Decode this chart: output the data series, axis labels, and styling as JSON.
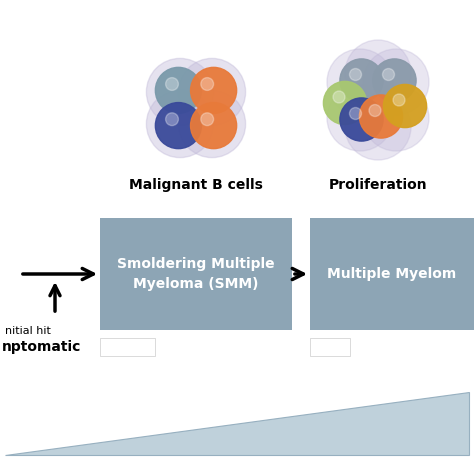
{
  "bg_color": "#ffffff",
  "box_color": "#8da5b5",
  "fig_w": 4.74,
  "fig_h": 4.74,
  "box1_label": "Smoldering Multiple\nMyeloma (SMM)",
  "box2_label": "Multiple Myelom",
  "label_color": "#ffffff",
  "label_fontsize": 10,
  "label_fontweight": "bold",
  "malignant_label": "Malignant B cells",
  "proliferation_label": "Proliferation",
  "cluster_label_fontsize": 10,
  "cluster_label_fontweight": "bold",
  "asymptomatic_label": "nptomatic",
  "initial_hit_label": "nitial hit",
  "triangle_color": "#b8ccd8",
  "aura_color1": "#c0b8d8",
  "aura_color2": "#c0b8d8",
  "colors_cluster1": [
    "#7a9aaa",
    "#e87a3a",
    "#3a4a9a",
    "#e87a3a"
  ],
  "colors_cluster2_gray1": "#8a9aaa",
  "colors_cluster2_gray2": "#8a9aaa",
  "colors_cluster2_green": "#a8c870",
  "colors_cluster2_blue": "#3a4a9a",
  "colors_cluster2_orange1": "#e87a3a",
  "colors_cluster2_orange2": "#e87a3a",
  "colors_cluster2_yellow": "#d4a020"
}
